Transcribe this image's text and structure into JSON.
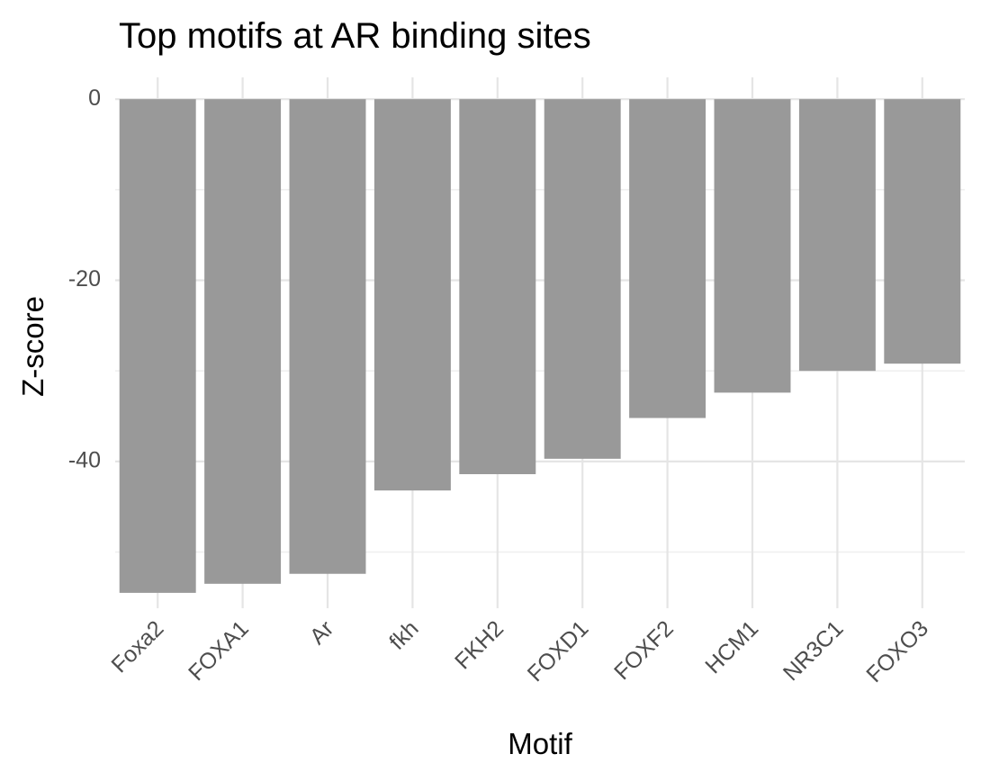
{
  "chart_data": {
    "type": "bar",
    "title": "Top motifs at AR binding sites",
    "xlabel": "Motif",
    "ylabel": "Z-score",
    "categories": [
      "Foxa2",
      "FOXA1",
      "Ar",
      "fkh",
      "FKH2",
      "FOXD1",
      "FOXF2",
      "HCM1",
      "NR3C1",
      "FOXO3"
    ],
    "values": [
      -54.5,
      -53.5,
      -52.4,
      -43.2,
      -41.4,
      -39.7,
      -35.2,
      -32.4,
      -30.0,
      -29.2
    ],
    "ylim": [
      -56.2,
      2.4
    ],
    "y_major_ticks": [
      0,
      -20,
      -40
    ],
    "y_minor_ticks": [
      -10,
      -30,
      -50
    ],
    "grid": true,
    "bar_color": "#999999"
  }
}
